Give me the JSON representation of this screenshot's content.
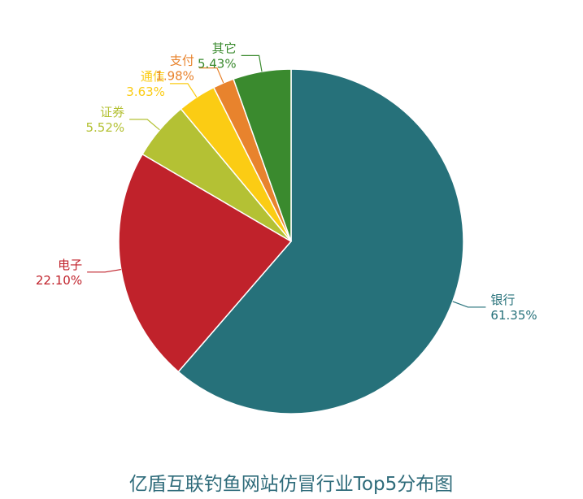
{
  "chart_data": {
    "type": "pie",
    "title": "亿盾互联钓鱼网站仿冒行业Top5分布图",
    "slices": [
      {
        "name": "银行",
        "value": 61.35,
        "value_label": "61.35%",
        "color": "#26717a"
      },
      {
        "name": "电子",
        "value": 22.1,
        "value_label": "22.10%",
        "color": "#c0222b"
      },
      {
        "name": "证券",
        "value": 5.52,
        "value_label": "5.52%",
        "color": "#b4c134"
      },
      {
        "name": "通信",
        "value": 3.63,
        "value_label": "3.63%",
        "color": "#fbcc14"
      },
      {
        "name": "支付",
        "value": 1.98,
        "value_label": "1.98%",
        "color": "#e8832d"
      },
      {
        "name": "其它",
        "value": 5.43,
        "value_label": "5.43%",
        "color": "#3a8a2e"
      }
    ]
  }
}
